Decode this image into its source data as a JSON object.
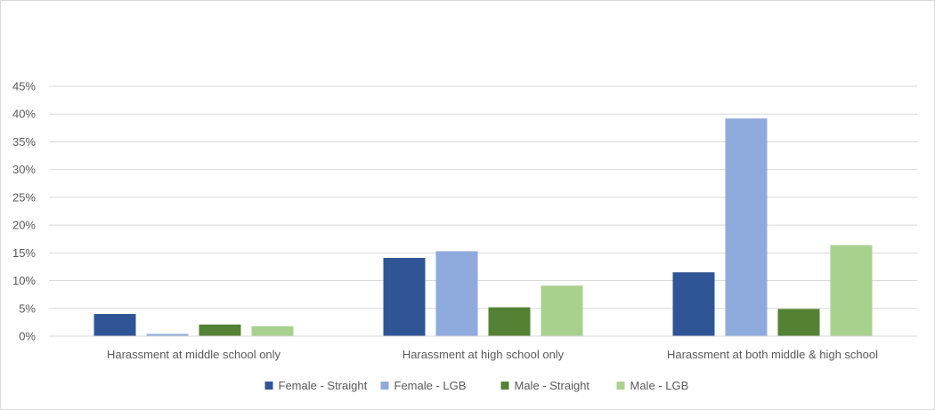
{
  "chart_data": {
    "type": "bar",
    "categories": [
      "Harassment at middle school only",
      "Harassment at high school only",
      "Harassment at both middle & high school"
    ],
    "series": [
      {
        "name": "Female - Straight",
        "color": "#2f5597",
        "values": [
          4.0,
          14.1,
          11.5
        ]
      },
      {
        "name": "Female - LGB",
        "color": "#8faadc",
        "values": [
          0.4,
          15.3,
          39.2
        ]
      },
      {
        "name": "Male - Straight",
        "color": "#548235",
        "values": [
          2.1,
          5.2,
          4.9
        ]
      },
      {
        "name": "Male - LGB",
        "color": "#a9d18e",
        "values": [
          1.8,
          9.1,
          16.4
        ]
      }
    ],
    "yticks": [
      "0%",
      "5%",
      "10%",
      "15%",
      "20%",
      "25%",
      "30%",
      "35%",
      "40%",
      "45%"
    ],
    "ylim": [
      0,
      45
    ],
    "ylabel_format": "percent",
    "grid": true,
    "legend_position": "bottom"
  }
}
